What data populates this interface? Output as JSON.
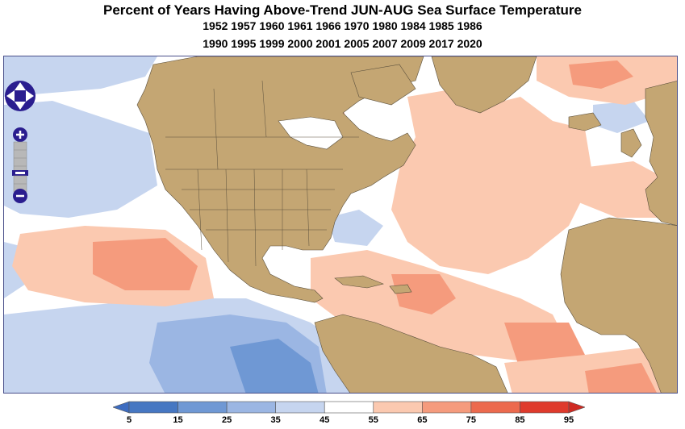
{
  "title": "Percent of Years Having Above-Trend JUN-AUG Sea Surface Temperature",
  "years_line1": "1952 1957 1960 1961 1966 1970 1980 1984 1985 1986",
  "years_line2": "1990 1995 1999 2000 2001 2005 2007 2009 2017 2020",
  "map": {
    "colors": {
      "land": "#c4a673",
      "ocean_neutral": "#ffffff",
      "border_line": "#5a4f3c"
    }
  },
  "nav": {
    "pan_icon": "pan-arrows-icon",
    "zoom_in_icon": "plus-icon",
    "zoom_out_icon": "minus-icon",
    "zoom_in_label": "+",
    "zoom_out_label": "–"
  },
  "colorbar": {
    "ticks": [
      "5",
      "15",
      "25",
      "35",
      "45",
      "55",
      "65",
      "75",
      "85",
      "95"
    ],
    "colors": [
      "#4677c2",
      "#6f98d4",
      "#9bb6e3",
      "#c6d5ef",
      "#ffffff",
      "#fbc9b0",
      "#f59b7d",
      "#ec6a4e",
      "#df3a2c"
    ],
    "under_color": "#3d6cc0",
    "over_color": "#cf2a22"
  }
}
